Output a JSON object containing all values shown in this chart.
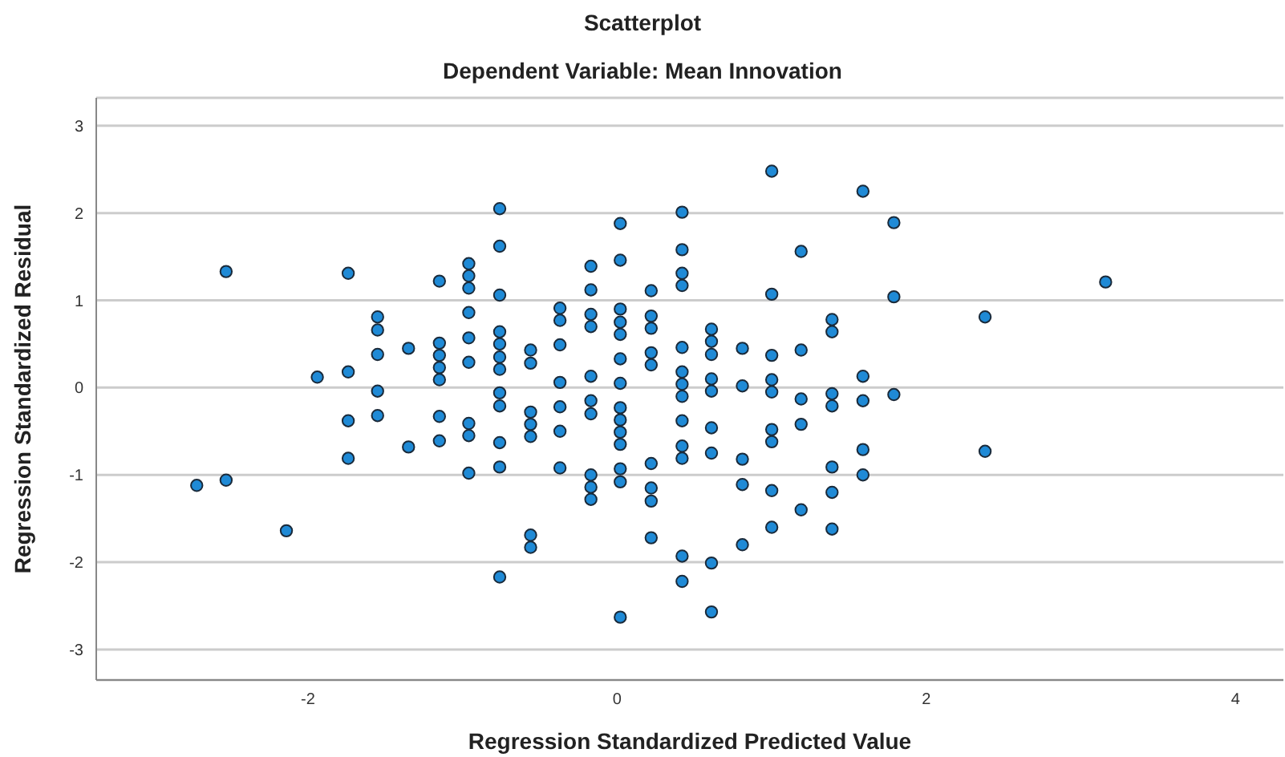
{
  "chart_data": {
    "type": "scatter",
    "title": "Scatterplot",
    "subtitle": "Dependent Variable: Mean Innovation",
    "xlabel": "Regression Standardized Predicted Value",
    "ylabel": "Regression Standardized Residual",
    "x": [
      -2.72,
      -2.53,
      -2.53,
      -2.14,
      -1.94,
      -1.74,
      -1.74,
      -1.74,
      -1.74,
      -1.55,
      -1.55,
      -1.55,
      -1.55,
      -1.55,
      -1.35,
      -1.35,
      -1.15,
      -1.15,
      -1.15,
      -1.15,
      -1.15,
      -1.15,
      -1.15,
      -0.96,
      -0.96,
      -0.96,
      -0.96,
      -0.96,
      -0.96,
      -0.96,
      -0.96,
      -0.96,
      -0.76,
      -0.76,
      -0.76,
      -0.76,
      -0.76,
      -0.76,
      -0.76,
      -0.76,
      -0.76,
      -0.76,
      -0.76,
      -0.76,
      -0.56,
      -0.56,
      -0.56,
      -0.56,
      -0.56,
      -0.56,
      -0.56,
      -0.37,
      -0.37,
      -0.37,
      -0.37,
      -0.37,
      -0.37,
      -0.37,
      -0.17,
      -0.17,
      -0.17,
      -0.17,
      -0.17,
      -0.17,
      -0.17,
      -0.17,
      -0.17,
      -0.17,
      0.02,
      0.02,
      0.02,
      0.02,
      0.02,
      0.02,
      0.02,
      0.02,
      0.02,
      0.02,
      0.02,
      0.02,
      0.02,
      0.02,
      0.22,
      0.22,
      0.22,
      0.22,
      0.22,
      0.22,
      0.22,
      0.22,
      0.22,
      0.42,
      0.42,
      0.42,
      0.42,
      0.42,
      0.42,
      0.42,
      0.42,
      0.42,
      0.42,
      0.42,
      0.42,
      0.42,
      0.61,
      0.61,
      0.61,
      0.61,
      0.61,
      0.61,
      0.61,
      0.61,
      0.61,
      0.81,
      0.81,
      0.81,
      0.81,
      0.81,
      1.0,
      1.0,
      1.0,
      1.0,
      1.0,
      1.0,
      1.0,
      1.0,
      1.0,
      1.19,
      1.19,
      1.19,
      1.19,
      1.19,
      1.39,
      1.39,
      1.39,
      1.39,
      1.39,
      1.39,
      1.39,
      1.59,
      1.59,
      1.59,
      1.59,
      1.59,
      1.79,
      1.79,
      1.79,
      2.38,
      2.38,
      3.16
    ],
    "values": [
      -1.12,
      1.33,
      -1.06,
      -1.64,
      0.12,
      1.31,
      0.18,
      -0.38,
      -0.81,
      0.81,
      0.66,
      0.38,
      -0.04,
      -0.32,
      0.45,
      -0.68,
      1.22,
      0.51,
      0.37,
      0.23,
      0.09,
      -0.33,
      -0.61,
      1.42,
      1.28,
      1.14,
      0.86,
      0.57,
      0.29,
      -0.41,
      -0.55,
      -0.98,
      2.05,
      1.62,
      1.06,
      0.64,
      0.5,
      0.35,
      0.21,
      -0.06,
      -0.21,
      -0.63,
      -0.91,
      -2.17,
      0.43,
      0.28,
      -0.28,
      -0.42,
      -0.56,
      -1.69,
      -1.83,
      0.91,
      0.77,
      0.49,
      0.06,
      -0.22,
      -0.5,
      -0.92,
      1.39,
      1.12,
      0.84,
      0.7,
      0.13,
      -0.15,
      -0.3,
      -1.0,
      -1.14,
      -1.28,
      1.88,
      1.46,
      0.9,
      0.75,
      0.61,
      0.33,
      0.05,
      -0.23,
      -0.37,
      -0.51,
      -0.65,
      -0.93,
      -1.08,
      -2.63,
      1.11,
      0.82,
      0.68,
      0.4,
      0.26,
      -0.87,
      -1.15,
      -1.3,
      -1.72,
      2.01,
      1.58,
      1.31,
      1.17,
      0.46,
      0.18,
      0.04,
      -0.1,
      -0.38,
      -0.67,
      -0.81,
      -1.93,
      -2.22,
      0.67,
      0.53,
      0.38,
      0.1,
      -0.04,
      -0.46,
      -0.75,
      -2.01,
      -2.57,
      0.45,
      0.02,
      -0.82,
      -1.11,
      -1.8,
      2.48,
      1.07,
      0.37,
      0.09,
      -0.05,
      -0.48,
      -0.62,
      -1.18,
      -1.6,
      1.56,
      0.43,
      -0.13,
      -0.42,
      -1.4,
      0.78,
      0.64,
      -0.07,
      -0.21,
      -0.91,
      -1.2,
      -1.62,
      2.25,
      0.13,
      -0.15,
      -0.71,
      -1.0,
      1.89,
      1.04,
      -0.08,
      0.81,
      -0.73,
      1.21
    ],
    "color": "#1f8ad6",
    "marker": "circle",
    "grid": "y",
    "xlim": [
      -3.37,
      4.31
    ],
    "xticks": [
      -2,
      0,
      2,
      4
    ],
    "ylim": [
      -3.35,
      3.32
    ],
    "yticks": [
      -3,
      -2,
      -1,
      0,
      1,
      2,
      3
    ]
  }
}
